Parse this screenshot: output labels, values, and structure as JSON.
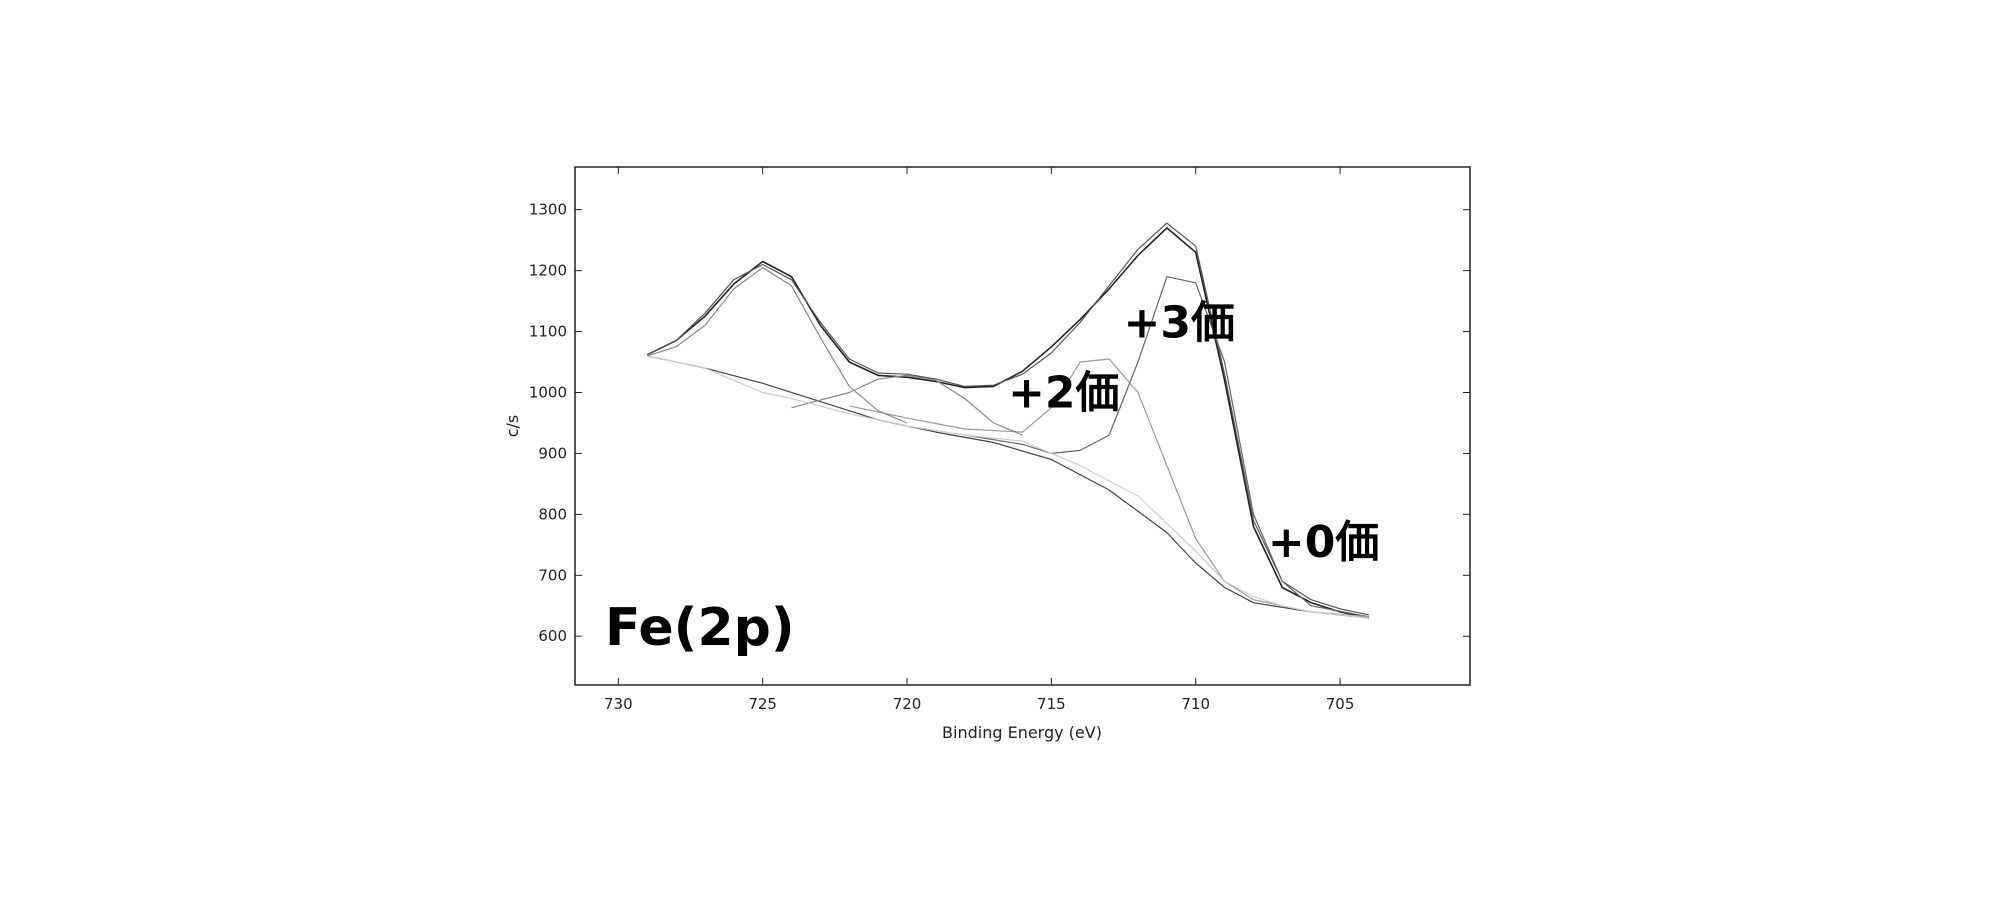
{
  "chart_data": {
    "type": "line",
    "title": "",
    "inset_label": "Fe(2p)",
    "xlabel": "Binding Energy (eV)",
    "ylabel": "c/s",
    "xlim": [
      731.5,
      700.5
    ],
    "ylim": [
      520,
      1370
    ],
    "x_reversed": true,
    "x_ticks": [
      730,
      725,
      720,
      715,
      710,
      705
    ],
    "y_ticks": [
      600,
      700,
      800,
      900,
      1000,
      1100,
      1200,
      1300
    ],
    "grid": false,
    "annotations": [
      {
        "text": "+3価",
        "x": 712.5,
        "y": 1090
      },
      {
        "text": "+2価",
        "x": 716.5,
        "y": 975
      },
      {
        "text": "+0価",
        "x": 707.5,
        "y": 730
      }
    ],
    "series": [
      {
        "role": "measured",
        "color": "#222222",
        "x": [
          729,
          728,
          727,
          726,
          725,
          724,
          723,
          722,
          721,
          720,
          719,
          718,
          717,
          716,
          715,
          714,
          713,
          712,
          711,
          710,
          709,
          708,
          707,
          706,
          705,
          704
        ],
        "y": [
          1062,
          1085,
          1125,
          1178,
          1215,
          1190,
          1110,
          1050,
          1028,
          1025,
          1018,
          1008,
          1010,
          1035,
          1075,
          1120,
          1170,
          1225,
          1270,
          1230,
          1020,
          780,
          680,
          655,
          640,
          630
        ]
      },
      {
        "role": "envelope",
        "color": "#555555",
        "x": [
          729,
          728,
          727,
          726,
          725,
          724,
          723,
          722,
          721,
          720,
          719,
          718,
          717,
          716,
          715,
          714,
          713,
          712,
          711,
          710,
          709,
          708,
          707,
          706,
          705,
          704
        ],
        "y": [
          1062,
          1085,
          1130,
          1185,
          1210,
          1185,
          1115,
          1055,
          1032,
          1030,
          1022,
          1010,
          1012,
          1030,
          1065,
          1115,
          1175,
          1235,
          1278,
          1240,
          1030,
          790,
          690,
          660,
          645,
          635
        ]
      },
      {
        "role": "background",
        "color": "#444444",
        "x": [
          729,
          727,
          725,
          723,
          721,
          719,
          717,
          715,
          713,
          711,
          710,
          709,
          708,
          706,
          704
        ],
        "y": [
          1060,
          1040,
          1015,
          985,
          955,
          935,
          918,
          890,
          840,
          770,
          720,
          680,
          655,
          640,
          630
        ]
      },
      {
        "role": "component +3価",
        "color": "#666666",
        "x": [
          718,
          716,
          715,
          714,
          713,
          712,
          711,
          710,
          709,
          708,
          707,
          706,
          704
        ],
        "y": [
          930,
          915,
          900,
          905,
          930,
          1050,
          1190,
          1180,
          1050,
          800,
          690,
          650,
          632
        ]
      },
      {
        "role": "component +2価",
        "color": "#999999",
        "x": [
          722,
          720,
          718,
          716,
          715,
          714,
          713,
          712,
          711,
          710,
          709,
          708,
          706,
          704
        ],
        "y": [
          978,
          958,
          940,
          935,
          975,
          1050,
          1055,
          1000,
          880,
          760,
          690,
          660,
          640,
          632
        ]
      },
      {
        "role": "component satellite",
        "color": "#888888",
        "x": [
          729,
          728,
          727,
          726,
          725,
          724,
          723,
          722,
          721,
          720
        ],
        "y": [
          1060,
          1075,
          1110,
          1170,
          1205,
          1175,
          1090,
          1010,
          970,
          950
        ]
      },
      {
        "role": "component satellite 2",
        "color": "#888888",
        "x": [
          724,
          722,
          721,
          720,
          719,
          718,
          717,
          716
        ],
        "y": [
          975,
          1000,
          1022,
          1028,
          1020,
          990,
          950,
          930
        ]
      },
      {
        "role": "residual",
        "color": "#cccccc",
        "x": [
          729,
          728,
          727,
          726,
          725,
          724,
          722,
          720,
          718,
          716,
          714,
          712,
          710,
          709,
          708,
          707,
          706,
          705,
          704
        ],
        "y": [
          1060,
          1050,
          1040,
          1020,
          1000,
          990,
          965,
          945,
          930,
          920,
          880,
          830,
          740,
          690,
          665,
          650,
          640,
          635,
          630
        ]
      }
    ]
  }
}
